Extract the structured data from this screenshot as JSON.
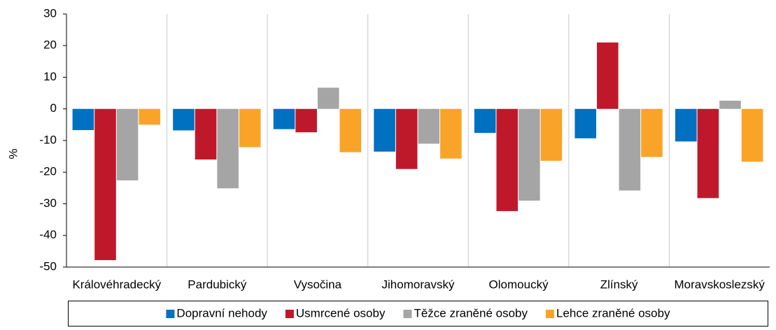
{
  "chart_data": {
    "type": "bar",
    "y_label": "%",
    "categories": [
      "Královéhradecký",
      "Pardubický",
      "Vysočina",
      "Jihomoravský",
      "Olomoucký",
      "Zlínský",
      "Moravskoslezský"
    ],
    "series": [
      {
        "name": "Dopravní nehody",
        "color": "#0070c0",
        "values": [
          -6.7,
          -6.8,
          -6.4,
          -13.5,
          -7.6,
          -9.3,
          -10.3
        ]
      },
      {
        "name": "Usmrcené osoby",
        "color": "#c0182b",
        "values": [
          -47.8,
          -16.0,
          -7.4,
          -19.0,
          -32.3,
          21.0,
          -28.2
        ]
      },
      {
        "name": "Těžce zraněné osoby",
        "color": "#a5a5a5",
        "values": [
          -22.6,
          -25.1,
          6.7,
          -11.0,
          -29.0,
          -25.8,
          2.6
        ]
      },
      {
        "name": "Lehce zraněné osoby",
        "color": "#f9a428",
        "values": [
          -5.0,
          -12.1,
          -13.7,
          -15.7,
          -16.4,
          -15.2,
          -16.7
        ]
      }
    ],
    "ylim": [
      -50,
      30
    ],
    "yticks": [
      -50,
      -40,
      -30,
      -20,
      -10,
      0,
      10,
      20,
      30
    ],
    "grid": "x",
    "legend": "bottom"
  }
}
